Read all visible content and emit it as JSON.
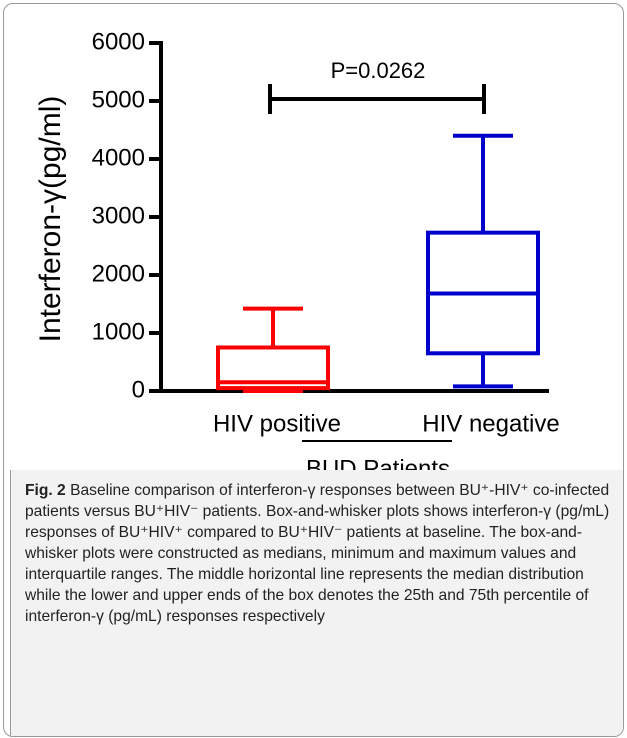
{
  "chart_data": {
    "type": "box",
    "ylabel": "Interferon-γ(pg/ml)",
    "xlabel": "BUD Patients",
    "categories": [
      "HIV positive",
      "HIV negative"
    ],
    "boxes": [
      {
        "min": 0,
        "q1": 50,
        "median": 150,
        "q3": 750,
        "max": 1420
      },
      {
        "min": 80,
        "q1": 650,
        "median": 1680,
        "q3": 2730,
        "max": 4400
      }
    ],
    "colors": [
      "#ff0000",
      "#0000cc"
    ],
    "ylim": [
      0,
      6000
    ],
    "yticks": [
      0,
      1000,
      2000,
      3000,
      4000,
      5000,
      6000
    ],
    "annotation": "P=0.0262"
  },
  "caption": {
    "label": "Fig. 2",
    "text": "Baseline comparison of interferon-γ responses between BU⁺-HIV⁺ co-infected patients versus BU⁺HIV⁻ patients. Box-and-whisker plots shows interferon-γ (pg/mL) responses of BU⁺HIV⁺ compared to BU⁺HIV⁻ patients at baseline. The box-and-whisker plots were constructed as medians, minimum and maximum values and interquartile ranges. The middle horizontal line represents the median distribution while the lower and upper ends of the box denotes the 25th and 75th percentile of interferon-γ (pg/mL) responses respectively"
  }
}
